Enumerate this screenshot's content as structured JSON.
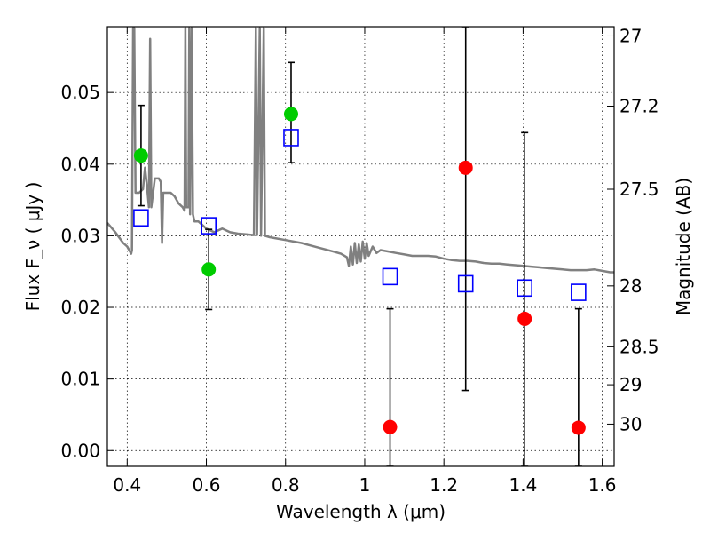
{
  "chart_data": {
    "type": "scatter",
    "xlabel": "Wavelength  λ (μm)",
    "ylabel": "Flux  F_ν  ( μJy )",
    "ylabel_right": "Magnitude (AB)",
    "xlim": [
      0.35,
      1.63
    ],
    "ylim": [
      -0.0022,
      0.0592
    ],
    "grid": true,
    "x_ticks": [
      0.4,
      0.6,
      0.8,
      1.0,
      1.2,
      1.4,
      1.6
    ],
    "x_tick_labels": [
      "0.4",
      "0.6",
      "0.8",
      "1",
      "1.2",
      "1.4",
      "1.6"
    ],
    "y_ticks": [
      0.0,
      0.01,
      0.02,
      0.03,
      0.04,
      0.05
    ],
    "y_tick_labels": [
      "0.00",
      "0.01",
      "0.02",
      "0.03",
      "0.04",
      "0.05"
    ],
    "right_ticks": [
      {
        "flux": 0.0579,
        "label": "27"
      },
      {
        "flux": 0.0481,
        "label": "27.2"
      },
      {
        "flux": 0.0365,
        "label": "27.5"
      },
      {
        "flux": 0.023,
        "label": "28"
      },
      {
        "flux": 0.0145,
        "label": "28.5"
      },
      {
        "flux": 0.0092,
        "label": "29"
      },
      {
        "flux": 0.0037,
        "label": "30"
      }
    ],
    "colors": {
      "green": "#00cc00",
      "red": "#ff0000",
      "blue": "#0000ff",
      "model": "#808080",
      "errorbar": "#000000"
    },
    "series": [
      {
        "marker": "circle-green",
        "points": [
          {
            "x": 0.435,
            "y": 0.0412,
            "yerr_low": 0.0342,
            "yerr_high": 0.0482
          },
          {
            "x": 0.606,
            "y": 0.0253,
            "yerr_low": 0.0197,
            "yerr_high": 0.0309
          },
          {
            "x": 0.814,
            "y": 0.047,
            "yerr_low": 0.0402,
            "yerr_high": 0.0542
          }
        ]
      },
      {
        "marker": "circle-red",
        "points": [
          {
            "x": 1.064,
            "y": 0.0033,
            "yerr_low": -0.0022,
            "yerr_high": 0.0198
          },
          {
            "x": 1.255,
            "y": 0.0395,
            "yerr_low": 0.0084,
            "yerr_high": 0.0592
          },
          {
            "x": 1.404,
            "y": 0.0184,
            "yerr_low": -0.0022,
            "yerr_high": 0.0444
          },
          {
            "x": 1.54,
            "y": 0.0032,
            "yerr_low": -0.0022,
            "yerr_high": 0.0198
          }
        ]
      },
      {
        "marker": "square-blue",
        "points": [
          {
            "x": 0.435,
            "y": 0.0325
          },
          {
            "x": 0.606,
            "y": 0.0314
          },
          {
            "x": 0.814,
            "y": 0.0437
          },
          {
            "x": 1.064,
            "y": 0.0243
          },
          {
            "x": 1.255,
            "y": 0.0233
          },
          {
            "x": 1.404,
            "y": 0.0227
          },
          {
            "x": 1.54,
            "y": 0.0221
          }
        ]
      },
      {
        "marker": "line-gray",
        "points": [
          [
            0.35,
            0.0318
          ],
          [
            0.37,
            0.0305
          ],
          [
            0.39,
            0.029
          ],
          [
            0.4,
            0.0285
          ],
          [
            0.41,
            0.0275
          ],
          [
            0.412,
            0.028
          ],
          [
            0.415,
            0.059
          ],
          [
            0.418,
            0.059
          ],
          [
            0.421,
            0.036
          ],
          [
            0.43,
            0.036
          ],
          [
            0.44,
            0.0365
          ],
          [
            0.445,
            0.0395
          ],
          [
            0.45,
            0.037
          ],
          [
            0.455,
            0.034
          ],
          [
            0.458,
            0.0575
          ],
          [
            0.461,
            0.034
          ],
          [
            0.47,
            0.038
          ],
          [
            0.48,
            0.038
          ],
          [
            0.485,
            0.0375
          ],
          [
            0.488,
            0.029
          ],
          [
            0.491,
            0.036
          ],
          [
            0.5,
            0.036
          ],
          [
            0.51,
            0.036
          ],
          [
            0.52,
            0.0355
          ],
          [
            0.53,
            0.0345
          ],
          [
            0.54,
            0.034
          ],
          [
            0.545,
            0.0335
          ],
          [
            0.547,
            0.059
          ],
          [
            0.549,
            0.034
          ],
          [
            0.555,
            0.034
          ],
          [
            0.557,
            0.059
          ],
          [
            0.559,
            0.033
          ],
          [
            0.563,
            0.059
          ],
          [
            0.566,
            0.033
          ],
          [
            0.57,
            0.032
          ],
          [
            0.58,
            0.032
          ],
          [
            0.59,
            0.0315
          ],
          [
            0.6,
            0.031
          ],
          [
            0.62,
            0.0305
          ],
          [
            0.64,
            0.031
          ],
          [
            0.66,
            0.0305
          ],
          [
            0.68,
            0.0303
          ],
          [
            0.7,
            0.0302
          ],
          [
            0.72,
            0.0301
          ],
          [
            0.725,
            0.059
          ],
          [
            0.728,
            0.0301
          ],
          [
            0.735,
            0.059
          ],
          [
            0.738,
            0.03
          ],
          [
            0.745,
            0.059
          ],
          [
            0.748,
            0.03
          ],
          [
            0.76,
            0.0298
          ],
          [
            0.78,
            0.0296
          ],
          [
            0.8,
            0.0294
          ],
          [
            0.82,
            0.0292
          ],
          [
            0.84,
            0.029
          ],
          [
            0.86,
            0.0287
          ],
          [
            0.88,
            0.0284
          ],
          [
            0.9,
            0.0281
          ],
          [
            0.92,
            0.0278
          ],
          [
            0.94,
            0.0275
          ],
          [
            0.955,
            0.027
          ],
          [
            0.96,
            0.0258
          ],
          [
            0.965,
            0.0285
          ],
          [
            0.97,
            0.026
          ],
          [
            0.975,
            0.029
          ],
          [
            0.98,
            0.0262
          ],
          [
            0.985,
            0.0288
          ],
          [
            0.99,
            0.0264
          ],
          [
            0.995,
            0.0292
          ],
          [
            1.0,
            0.0268
          ],
          [
            1.005,
            0.029
          ],
          [
            1.01,
            0.0272
          ],
          [
            1.02,
            0.0285
          ],
          [
            1.03,
            0.0276
          ],
          [
            1.04,
            0.028
          ],
          [
            1.06,
            0.0278
          ],
          [
            1.08,
            0.0276
          ],
          [
            1.1,
            0.0274
          ],
          [
            1.12,
            0.0272
          ],
          [
            1.14,
            0.0272
          ],
          [
            1.16,
            0.0272
          ],
          [
            1.18,
            0.0271
          ],
          [
            1.2,
            0.0268
          ],
          [
            1.22,
            0.0266
          ],
          [
            1.24,
            0.0265
          ],
          [
            1.26,
            0.0265
          ],
          [
            1.28,
            0.0264
          ],
          [
            1.3,
            0.0262
          ],
          [
            1.32,
            0.0261
          ],
          [
            1.34,
            0.0261
          ],
          [
            1.36,
            0.026
          ],
          [
            1.38,
            0.0259
          ],
          [
            1.4,
            0.0258
          ],
          [
            1.42,
            0.0257
          ],
          [
            1.44,
            0.0256
          ],
          [
            1.46,
            0.0255
          ],
          [
            1.48,
            0.0254
          ],
          [
            1.5,
            0.0253
          ],
          [
            1.52,
            0.0252
          ],
          [
            1.54,
            0.0252
          ],
          [
            1.56,
            0.0252
          ],
          [
            1.58,
            0.0253
          ],
          [
            1.6,
            0.0251
          ],
          [
            1.62,
            0.0249
          ],
          [
            1.63,
            0.0249
          ]
        ]
      }
    ]
  }
}
